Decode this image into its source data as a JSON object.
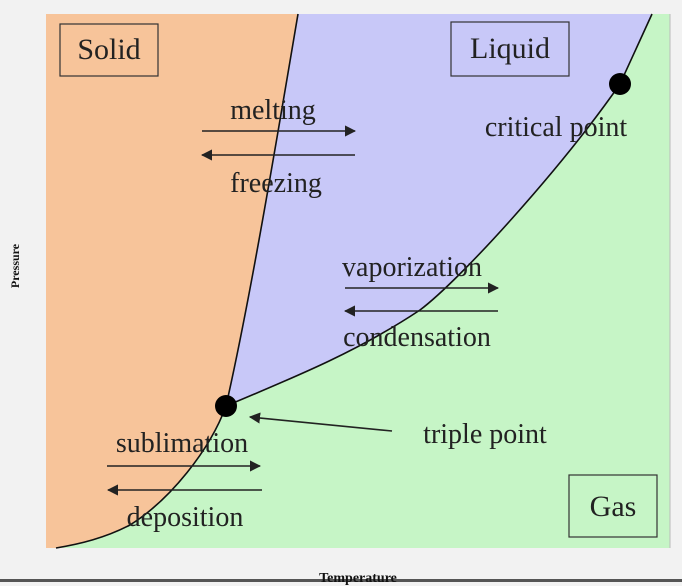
{
  "diagram": {
    "phases": {
      "solid": "Solid",
      "liquid": "Liquid",
      "gas": "Gas"
    },
    "transitions": {
      "melting": "melting",
      "freezing": "freezing",
      "vaporization": "vaporization",
      "condensation": "condensation",
      "sublimation": "sublimation",
      "deposition": "deposition"
    },
    "points": {
      "critical": "critical point",
      "triple": "triple point"
    },
    "axes": {
      "x": "Temperature",
      "y": "Pressure"
    },
    "colors": {
      "solid": "#f7c49a",
      "liquid": "#c8c8f8",
      "gas": "#c6f5c6",
      "background": "#f2f2f2",
      "line": "#111111"
    }
  }
}
